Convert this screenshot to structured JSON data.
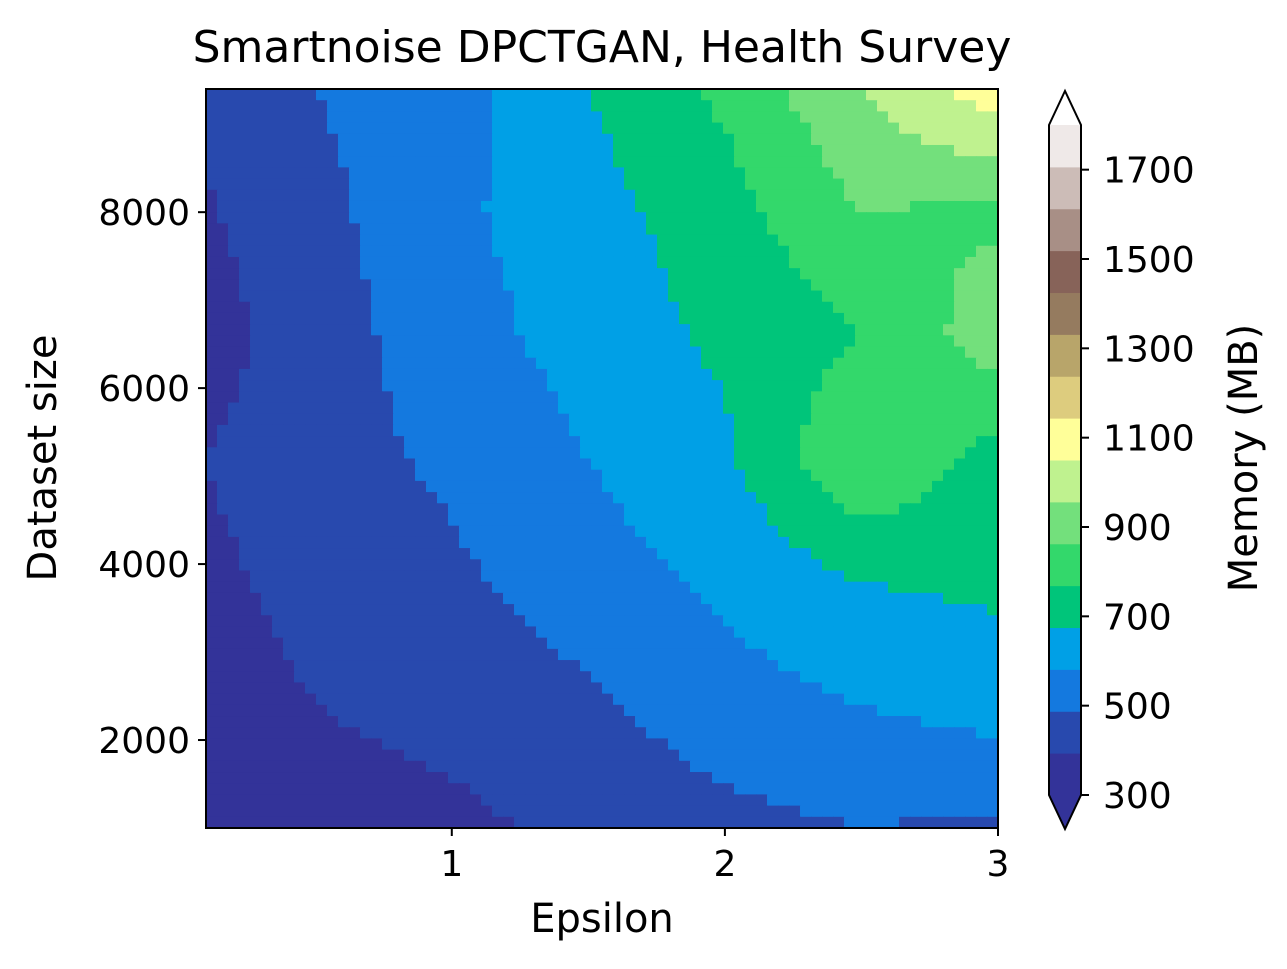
{
  "chart_data": {
    "type": "heatmap",
    "title": "Smartnoise DPCTGAN, Health Survey",
    "xlabel": "Epsilon",
    "ylabel": "Dataset size",
    "xlim": [
      0.1,
      3.0
    ],
    "ylim": [
      1000,
      9400
    ],
    "x_ticks": [
      "1",
      "2",
      "3"
    ],
    "y_ticks": [
      "2000",
      "4000",
      "6000",
      "8000"
    ],
    "colorbar": {
      "label": "Memory (MB)",
      "ticks": [
        "300",
        "500",
        "700",
        "900",
        "1100",
        "1300",
        "1500",
        "1700"
      ],
      "levels": [
        300,
        400,
        500,
        600,
        700,
        800,
        900,
        1000,
        1100,
        1200,
        1300,
        1400,
        1500,
        1600,
        1700,
        1800
      ],
      "colors": [
        "#333399",
        "#2849ae",
        "#1479df",
        "#00a0e6",
        "#00c57a",
        "#33d86b",
        "#73e07c",
        "#bff28f",
        "#ffff99",
        "#ddcc7e",
        "#b8a56a",
        "#957b5f",
        "#876359",
        "#a88f86",
        "#ccbcb7",
        "#efe9e8"
      ],
      "under_color": "#333399",
      "over_color": "#ffffff",
      "extend": "both"
    },
    "x": [
      0.1,
      0.5,
      1.0,
      1.5,
      2.0,
      2.5,
      3.0
    ],
    "y": [
      1000,
      2400,
      3800,
      5200,
      6600,
      8000,
      9400
    ],
    "z": [
      [
        330,
        360,
        380,
        420,
        470,
        500,
        480
      ],
      [
        360,
        400,
        430,
        480,
        560,
        600,
        640
      ],
      [
        380,
        430,
        480,
        560,
        620,
        700,
        720
      ],
      [
        400,
        460,
        520,
        600,
        680,
        900,
        760
      ],
      [
        360,
        450,
        560,
        640,
        720,
        800,
        960
      ],
      [
        390,
        470,
        580,
        660,
        760,
        900,
        880
      ],
      [
        420,
        500,
        560,
        700,
        820,
        1000,
        1160
      ]
    ]
  }
}
